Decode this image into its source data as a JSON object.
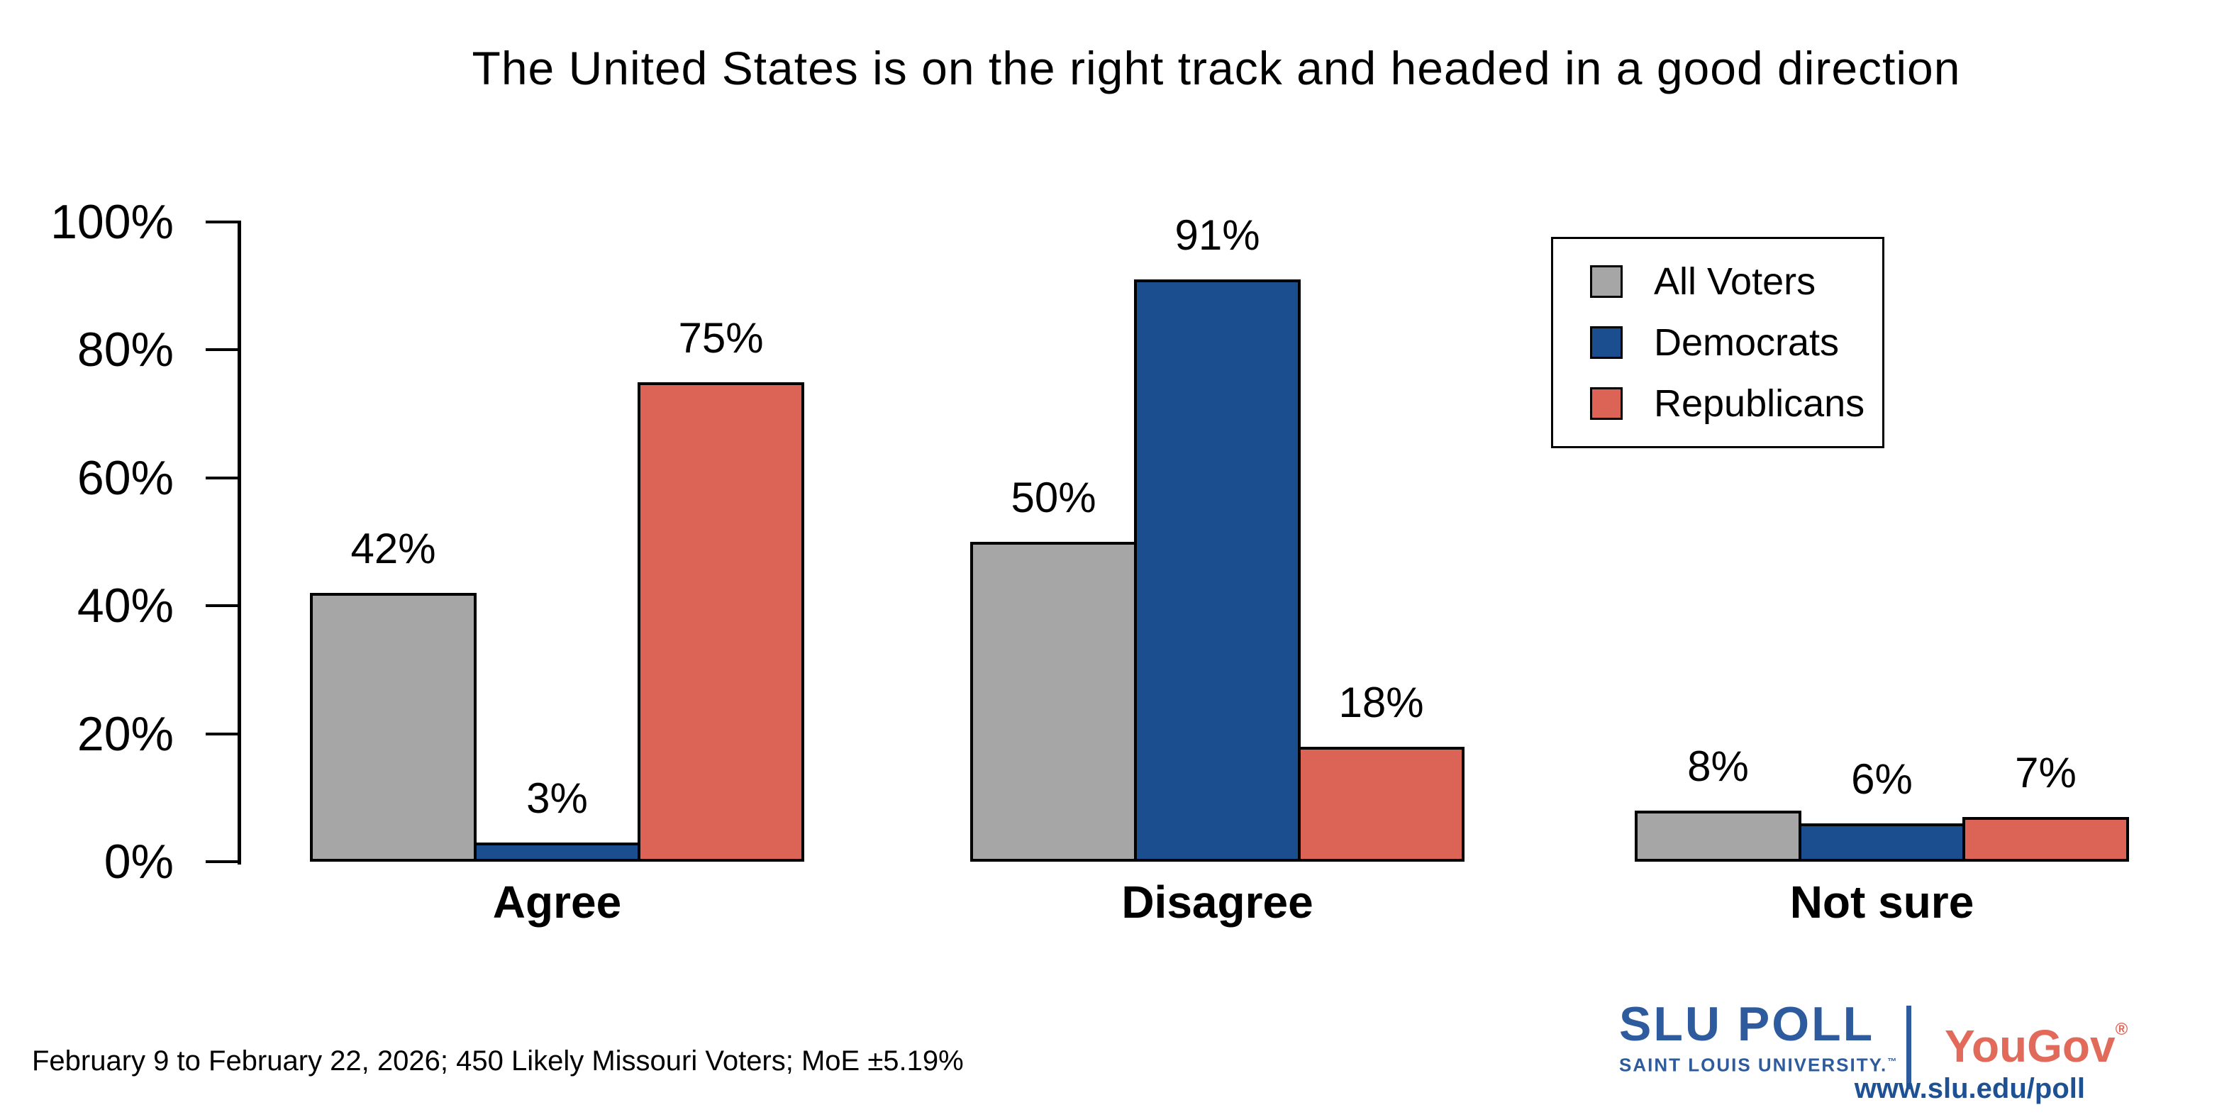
{
  "title": "The United States is on the right track and headed in a good direction",
  "colors": {
    "all_voters": "#a6a6a6",
    "democrats": "#1b4e8f",
    "republicans": "#dc6457",
    "bar_outline": "#000000",
    "slu_blue": "#2d5b9e",
    "link_blue": "#1d5193",
    "yougov_coral": "#e26a5b"
  },
  "chart_data": {
    "type": "bar",
    "title": "The United States is on the right track and headed in a good direction",
    "categories": [
      "Agree",
      "Disagree",
      "Not sure"
    ],
    "series": [
      {
        "name": "All Voters",
        "color": "#a6a6a6",
        "values": [
          42,
          50,
          8
        ]
      },
      {
        "name": "Democrats",
        "color": "#1b4e8f",
        "values": [
          3,
          91,
          6
        ]
      },
      {
        "name": "Republicans",
        "color": "#dc6457",
        "values": [
          75,
          18,
          7
        ]
      }
    ],
    "value_labels": [
      [
        "42%",
        "50%",
        "8%"
      ],
      [
        "3%",
        "91%",
        "6%"
      ],
      [
        "75%",
        "18%",
        "7%"
      ]
    ],
    "value_suffix": "%",
    "ylim": [
      0,
      100
    ],
    "yticks": [
      0,
      20,
      40,
      60,
      80,
      100
    ],
    "ytick_labels": [
      "0%",
      "20%",
      "40%",
      "60%",
      "80%",
      "100%"
    ],
    "grid": false,
    "legend_position": "top-right"
  },
  "legend": {
    "items": [
      "All Voters",
      "Democrats",
      "Republicans"
    ]
  },
  "footer": {
    "note": "February 9 to February 22, 2026; 450 Likely Missouri Voters; MoE ±5.19%",
    "slu": {
      "wordmark": "SLU POLL",
      "subtext": "SAINT LOUIS UNIVERSITY.",
      "trademark": "™",
      "url": "www.slu.edu/poll"
    },
    "yougov": {
      "wordmark": "YouGov",
      "registered": "®"
    }
  }
}
